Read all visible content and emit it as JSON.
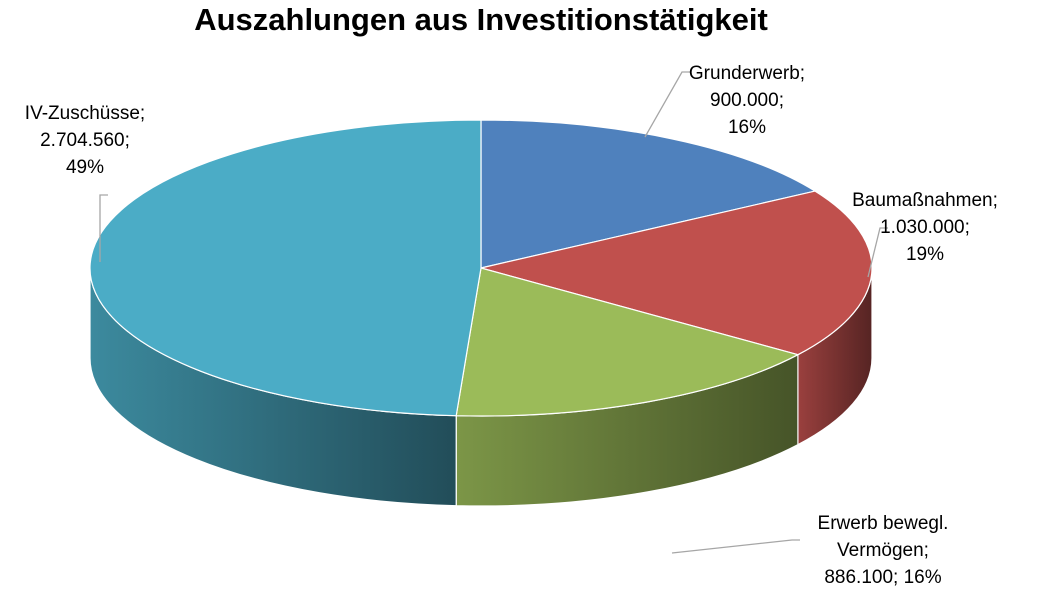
{
  "chart_data": {
    "type": "pie3d",
    "title": "Auszahlungen aus Investitionstätigkeit",
    "categories": [
      "Grunderwerb",
      "Baumaßnahmen",
      "Erwerb bewegl. Vermögen",
      "IV-Zuschüsse"
    ],
    "values": [
      900000,
      1030000,
      886100,
      2704560
    ],
    "value_labels": [
      "900.000",
      "1.030.000",
      "886.100",
      "2.704.560"
    ],
    "percent_labels": [
      "16%",
      "19%",
      "16%",
      "49%"
    ],
    "label_separator": ";",
    "colors": [
      "#4f81bd",
      "#c0504d",
      "#9bbb59",
      "#4bacc6"
    ]
  }
}
